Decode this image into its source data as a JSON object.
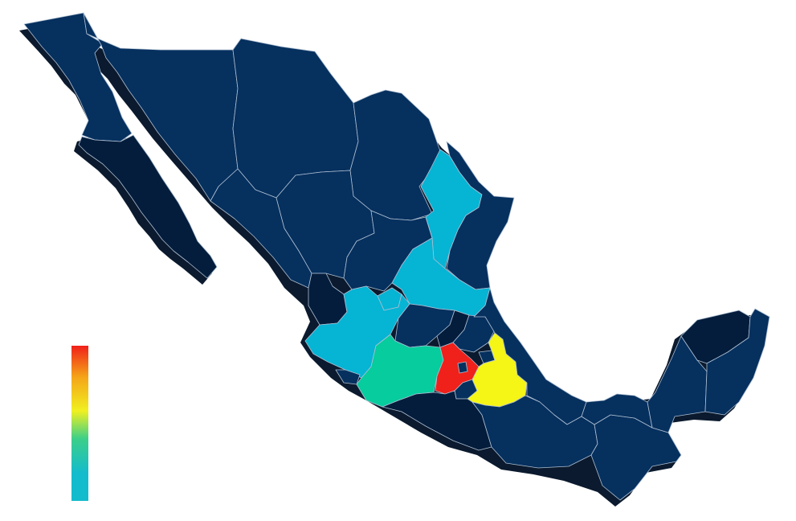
{
  "palette": {
    "background": "#ffffff",
    "land_dark": "#06305e",
    "land_darker": "#041d3c",
    "shadow": "#0b1a2e",
    "border": "#aebfd2",
    "scale_low": "#13bccc",
    "scale_mid": "#f0f020",
    "scale_high": "#f0201a"
  },
  "map": {
    "country": "Mexico",
    "region_fills": {
      "baja_california": "#06305e",
      "baja_california_sur": "#041d3c",
      "sonora": "#06305e",
      "chihuahua": "#06305e",
      "coahuila": "#06305e",
      "nuevo_leon": "#06b4d4",
      "tamaulipas": "#06305e",
      "sinaloa": "#06305e",
      "durango": "#06305e",
      "zacatecas": "#06305e",
      "san_luis_potosi": "#06b4d4",
      "nayarit": "#041d3c",
      "aguascalientes": "#06b4d4",
      "jalisco": "#06b4d4",
      "colima": "#06305e",
      "guanajuato": "#06305e",
      "queretaro": "#041d3c",
      "hidalgo": "#06305e",
      "michoacan": "#06cc9e",
      "estado_de_mexico": "#f0201a",
      "ciudad_de_mexico": "#06305e",
      "morelos": "#06305e",
      "tlaxcala": "#06305e",
      "puebla": "#f5f516",
      "veracruz": "#06305e",
      "guerrero": "#041d3c",
      "oaxaca": "#06305e",
      "chiapas": "#06305e",
      "tabasco": "#06305e",
      "campeche": "#06305e",
      "yucatan": "#041d3c",
      "quintana_roo": "#06305e"
    }
  },
  "legend": {
    "type": "color-scale",
    "orientation": "vertical",
    "labels": []
  }
}
